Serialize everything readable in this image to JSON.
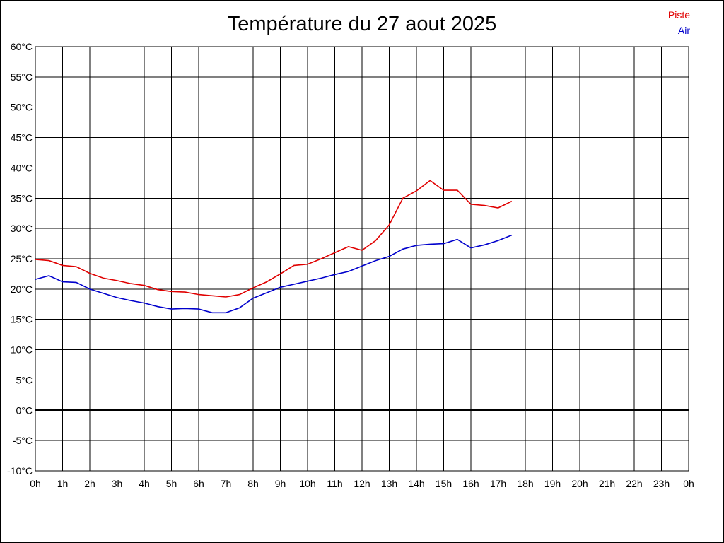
{
  "chart_data": {
    "type": "line",
    "title": "Température du 27 aout 2025",
    "xlabel": "",
    "ylabel": "",
    "ylim": [
      -10,
      60
    ],
    "xlim": [
      0,
      24
    ],
    "grid": true,
    "legend_position": "top-right",
    "y_ticks": [
      "60°C",
      "55°C",
      "50°C",
      "45°C",
      "40°C",
      "35°C",
      "30°C",
      "25°C",
      "20°C",
      "15°C",
      "10°C",
      "5°C",
      "0°C",
      "-5°C",
      "-10°C"
    ],
    "y_tick_values": [
      60,
      55,
      50,
      45,
      40,
      35,
      30,
      25,
      20,
      15,
      10,
      5,
      0,
      -5,
      -10
    ],
    "x_ticks": [
      "0h",
      "1h",
      "2h",
      "3h",
      "4h",
      "5h",
      "6h",
      "7h",
      "8h",
      "9h",
      "10h",
      "11h",
      "12h",
      "13h",
      "14h",
      "15h",
      "16h",
      "17h",
      "18h",
      "19h",
      "20h",
      "21h",
      "22h",
      "23h",
      "0h"
    ],
    "x_tick_values": [
      0,
      1,
      2,
      3,
      4,
      5,
      6,
      7,
      8,
      9,
      10,
      11,
      12,
      13,
      14,
      15,
      16,
      17,
      18,
      19,
      20,
      21,
      22,
      23,
      24
    ],
    "series": [
      {
        "name": "Piste",
        "color": "#e00000",
        "x": [
          0,
          0.5,
          1,
          1.5,
          2,
          2.5,
          3,
          3.5,
          4,
          4.5,
          5,
          5.5,
          6,
          6.5,
          7,
          7.5,
          8,
          8.5,
          9,
          9.5,
          10,
          10.5,
          11,
          11.5,
          12,
          12.5,
          13,
          13.5,
          14,
          14.5,
          15,
          15.5,
          16,
          16.5,
          17,
          17.5
        ],
        "values": [
          24.9,
          24.7,
          23.9,
          23.7,
          22.6,
          21.8,
          21.4,
          20.9,
          20.6,
          19.9,
          19.6,
          19.5,
          19.1,
          18.9,
          18.7,
          19.1,
          20.2,
          21.2,
          22.5,
          23.9,
          24.1,
          25.0,
          26.0,
          27.0,
          26.4,
          28.0,
          30.6,
          35.0,
          36.2,
          37.9,
          36.3,
          36.3,
          34.0,
          33.8,
          33.4,
          34.5
        ]
      },
      {
        "name": "Air",
        "color": "#0000cc",
        "x": [
          0,
          0.5,
          1,
          1.5,
          2,
          2.5,
          3,
          3.5,
          4,
          4.5,
          5,
          5.5,
          6,
          6.5,
          7,
          7.5,
          8,
          8.5,
          9,
          9.5,
          10,
          10.5,
          11,
          11.5,
          12,
          12.5,
          13,
          13.5,
          14,
          14.5,
          15,
          15.5,
          16,
          16.5,
          17,
          17.5
        ],
        "values": [
          21.6,
          22.2,
          21.2,
          21.1,
          20.0,
          19.3,
          18.6,
          18.1,
          17.7,
          17.1,
          16.7,
          16.8,
          16.7,
          16.1,
          16.1,
          16.9,
          18.5,
          19.4,
          20.3,
          20.8,
          21.3,
          21.8,
          22.4,
          22.9,
          23.8,
          24.7,
          25.4,
          26.6,
          27.2,
          27.4,
          27.5,
          28.2,
          26.8,
          27.3,
          28.0,
          28.9
        ]
      }
    ]
  }
}
